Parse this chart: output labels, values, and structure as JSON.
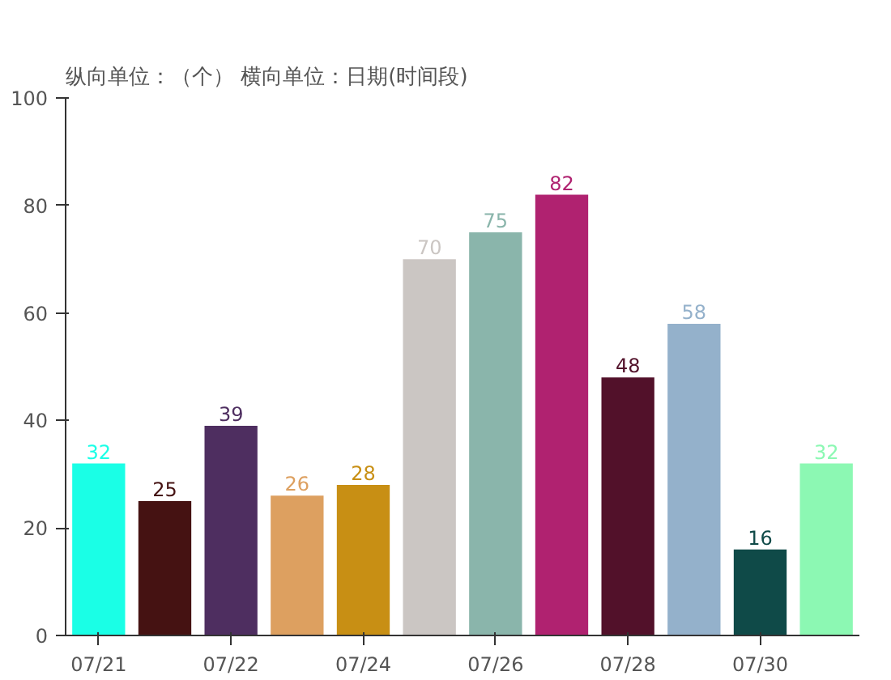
{
  "chart_data": {
    "type": "bar",
    "title": "纵向单位：（个）   横向单位：日期(时间段)",
    "categories": [
      "07/21",
      null,
      "07/22",
      null,
      "07/24",
      null,
      "07/26",
      null,
      "07/28",
      null,
      "07/30",
      null
    ],
    "values": [
      32,
      25,
      39,
      26,
      28,
      70,
      75,
      82,
      48,
      58,
      16,
      32
    ],
    "colors": [
      "#1affe6",
      "#451212",
      "#4e2e60",
      "#dda060",
      "#c88f14",
      "#cbc6c3",
      "#8ab5ab",
      "#b02270",
      "#52112a",
      "#94b1cb",
      "#0f4a48",
      "#8cf8b3"
    ],
    "ylim": [
      0,
      100
    ],
    "yticks": [
      0,
      20,
      40,
      60,
      80,
      100
    ],
    "grid": false,
    "data_labels": true
  }
}
